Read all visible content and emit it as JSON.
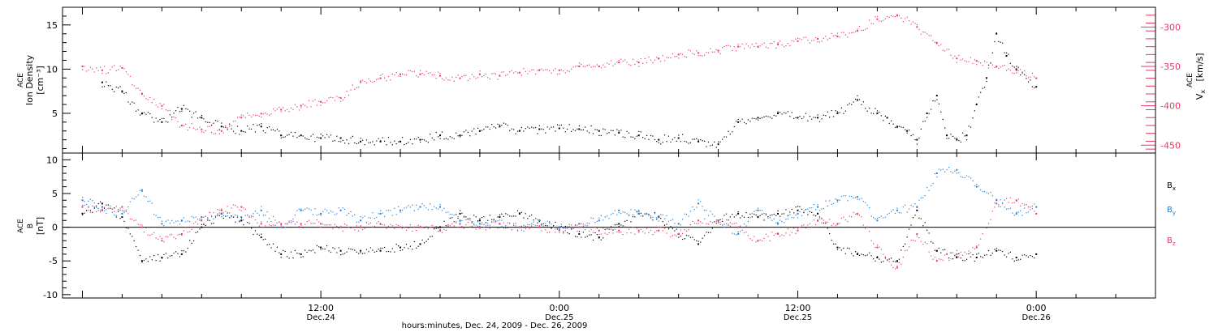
{
  "chart_data": [
    {
      "type": "scatter",
      "ylabel_lines": [
        "ACE",
        "Ion Density",
        "[cm⁻³]"
      ],
      "y2label_lines": [
        "ACE",
        "V",
        "x",
        "[km/s]"
      ],
      "ylim": [
        0.5,
        17
      ],
      "y_ticks": [
        5,
        10,
        15
      ],
      "y2lim": [
        -460,
        -275
      ],
      "y2_ticks": [
        -450,
        -400,
        -350,
        -300
      ],
      "series": [
        {
          "color": "#000000",
          "axis": "left",
          "x": [
            1.0,
            2.0,
            3.0,
            4.0,
            5.0,
            6.0,
            7.0,
            8.0,
            9.0,
            10.0,
            11.0,
            12.0,
            13.0,
            14.0,
            15.0,
            16.0,
            17.0,
            18.0,
            19.0,
            20.0,
            21.0,
            22.0,
            23.0,
            24.0,
            25.0,
            26.0,
            27.0,
            28.0,
            29.0,
            30.0,
            31.0,
            32.0,
            33.0,
            34.0,
            35.0,
            36.0,
            37.0,
            38.0,
            39.0,
            40.0,
            40.5,
            41.0,
            41.5,
            42.0,
            42.5,
            43.0,
            43.5,
            44.0,
            44.5,
            45.0,
            45.5,
            46.0,
            46.5,
            47.0,
            48.0
          ],
          "values": [
            8.5,
            7.5,
            5.0,
            4.0,
            5.5,
            4.5,
            3.5,
            3.0,
            3.5,
            2.5,
            2.5,
            2.2,
            2.2,
            1.8,
            1.8,
            1.8,
            2.0,
            2.5,
            2.5,
            3.0,
            3.5,
            3.0,
            3.2,
            3.3,
            3.2,
            3.0,
            2.8,
            2.5,
            2.0,
            2.2,
            1.8,
            1.5,
            4.0,
            4.5,
            5.0,
            4.5,
            4.5,
            5.0,
            6.5,
            5.0,
            4.5,
            3.5,
            3.0,
            2.0,
            5.0,
            7.0,
            2.5,
            2.0,
            2.5,
            6.0,
            9.0,
            14.0,
            11.5,
            10.0,
            8.0
          ]
        },
        {
          "color": "#e83a65",
          "axis": "right",
          "x": [
            0.0,
            1.0,
            2.0,
            3.0,
            4.0,
            5.0,
            6.0,
            7.0,
            8.0,
            9.0,
            10.0,
            11.0,
            12.0,
            13.0,
            14.0,
            15.0,
            16.0,
            17.0,
            18.0,
            19.0,
            20.0,
            21.0,
            22.0,
            23.0,
            24.0,
            25.0,
            26.0,
            27.0,
            28.0,
            29.0,
            30.0,
            31.0,
            32.0,
            33.0,
            34.0,
            35.0,
            36.0,
            37.0,
            38.0,
            39.0,
            40.0,
            41.0,
            42.0,
            43.0,
            44.0,
            45.0,
            46.0,
            47.0,
            48.0
          ],
          "values": [
            -350,
            -355,
            -352,
            -385,
            -400,
            -425,
            -430,
            -432,
            -415,
            -410,
            -405,
            -400,
            -395,
            -390,
            -370,
            -365,
            -360,
            -360,
            -362,
            -365,
            -360,
            -362,
            -358,
            -355,
            -355,
            -350,
            -350,
            -345,
            -345,
            -340,
            -335,
            -333,
            -330,
            -325,
            -325,
            -322,
            -318,
            -315,
            -312,
            -305,
            -290,
            -285,
            -300,
            -320,
            -340,
            -343,
            -350,
            -355,
            -365
          ]
        }
      ]
    },
    {
      "type": "scatter",
      "ylabel_lines": [
        "ACE",
        "B",
        "[nT]"
      ],
      "ylim": [
        -10.5,
        11
      ],
      "y_ticks": [
        -10,
        -5,
        0,
        5,
        10
      ],
      "zero_line": true,
      "legend": "right",
      "x_tick_labels": [
        {
          "x": 12,
          "time": "12:00",
          "date": "Dec.24"
        },
        {
          "x": 24,
          "time": "0:00",
          "date": "Dec.25"
        },
        {
          "x": 36,
          "time": "12:00",
          "date": "Dec.25"
        },
        {
          "x": 48,
          "time": "0:00",
          "date": "Dec.26"
        }
      ],
      "xlim": [
        -1,
        54
      ],
      "xlabel": "hours:minutes, Dec. 24, 2009 - Dec. 26, 2009",
      "series": [
        {
          "name": "B",
          "sub": "x",
          "color": "#000000",
          "x": [
            0.0,
            1.0,
            2.0,
            3.0,
            4.0,
            5.0,
            6.0,
            7.0,
            8.0,
            9.0,
            10.0,
            11.0,
            12.0,
            13.0,
            14.0,
            15.0,
            16.0,
            17.0,
            18.0,
            19.0,
            20.0,
            21.0,
            22.0,
            23.0,
            24.0,
            25.0,
            26.0,
            27.0,
            28.0,
            29.0,
            30.0,
            31.0,
            32.0,
            33.0,
            34.0,
            35.0,
            36.0,
            37.0,
            38.0,
            39.0,
            40.0,
            41.0,
            42.0,
            43.0,
            44.0,
            45.0,
            46.0,
            47.0,
            48.0
          ],
          "values": [
            2.0,
            3.5,
            1.5,
            -5.0,
            -4.5,
            -4.0,
            0.0,
            2.0,
            1.0,
            -1.5,
            -4.0,
            -4.0,
            -3.0,
            -3.5,
            -3.5,
            -3.5,
            -3.0,
            -2.5,
            0.0,
            2.0,
            1.0,
            1.5,
            2.0,
            1.0,
            0.0,
            -1.0,
            -1.5,
            0.5,
            2.0,
            1.5,
            -1.0,
            -2.5,
            1.0,
            2.0,
            1.5,
            2.0,
            2.5,
            2.0,
            -3.0,
            -4.0,
            -4.5,
            -5.0,
            2.5,
            -3.5,
            -4.5,
            -4.5,
            -3.5,
            -4.5,
            -4.0
          ]
        },
        {
          "name": "B",
          "sub": "y",
          "color": "#1f7fdc",
          "x": [
            0.0,
            1.0,
            2.0,
            3.0,
            4.0,
            5.0,
            6.0,
            7.0,
            8.0,
            9.0,
            10.0,
            11.0,
            12.0,
            13.0,
            14.0,
            15.0,
            16.0,
            17.0,
            18.0,
            19.0,
            20.0,
            21.0,
            22.0,
            23.0,
            24.0,
            25.0,
            26.0,
            27.0,
            28.0,
            29.0,
            30.0,
            31.0,
            32.0,
            33.0,
            34.0,
            35.0,
            36.0,
            37.0,
            38.0,
            39.0,
            40.0,
            41.0,
            42.0,
            43.0,
            44.0,
            45.0,
            46.0,
            47.0,
            48.0
          ],
          "values": [
            4.0,
            3.0,
            2.0,
            5.5,
            0.5,
            1.0,
            1.5,
            2.0,
            1.5,
            2.5,
            0.0,
            2.5,
            2.0,
            2.5,
            1.0,
            2.0,
            2.5,
            3.0,
            3.0,
            1.0,
            0.5,
            0.5,
            0.0,
            1.0,
            0.0,
            0.5,
            1.0,
            2.5,
            2.0,
            1.5,
            0.5,
            3.5,
            1.0,
            -1.0,
            2.5,
            0.5,
            2.0,
            3.0,
            4.0,
            4.5,
            1.0,
            2.5,
            3.0,
            8.0,
            8.5,
            6.0,
            4.0,
            2.0,
            3.0
          ]
        },
        {
          "name": "B",
          "sub": "z",
          "color": "#e83a65",
          "x": [
            0.0,
            1.0,
            2.0,
            3.0,
            4.0,
            5.0,
            6.0,
            7.0,
            8.0,
            9.0,
            10.0,
            11.0,
            12.0,
            13.0,
            14.0,
            15.0,
            16.0,
            17.0,
            18.0,
            19.0,
            20.0,
            21.0,
            22.0,
            23.0,
            24.0,
            25.0,
            26.0,
            27.0,
            28.0,
            29.0,
            30.0,
            31.0,
            32.0,
            33.0,
            34.0,
            35.0,
            36.0,
            37.0,
            38.0,
            39.0,
            40.0,
            41.0,
            42.0,
            43.0,
            44.0,
            45.0,
            46.0,
            47.0,
            48.0
          ],
          "values": [
            3.0,
            2.5,
            3.0,
            0.0,
            -2.0,
            -1.0,
            1.0,
            2.5,
            3.0,
            0.5,
            0.5,
            0.5,
            0.5,
            0.0,
            0.0,
            0.5,
            0.0,
            0.0,
            -0.5,
            0.5,
            0.0,
            0.5,
            0.0,
            0.0,
            -0.5,
            0.0,
            -0.5,
            -0.5,
            -0.5,
            -0.5,
            -1.0,
            1.0,
            1.0,
            0.0,
            -2.0,
            -1.0,
            -0.5,
            1.0,
            0.5,
            2.0,
            -3.0,
            -6.0,
            -1.0,
            -5.0,
            -4.0,
            -3.0,
            3.5,
            4.0,
            2.0
          ]
        }
      ]
    }
  ]
}
